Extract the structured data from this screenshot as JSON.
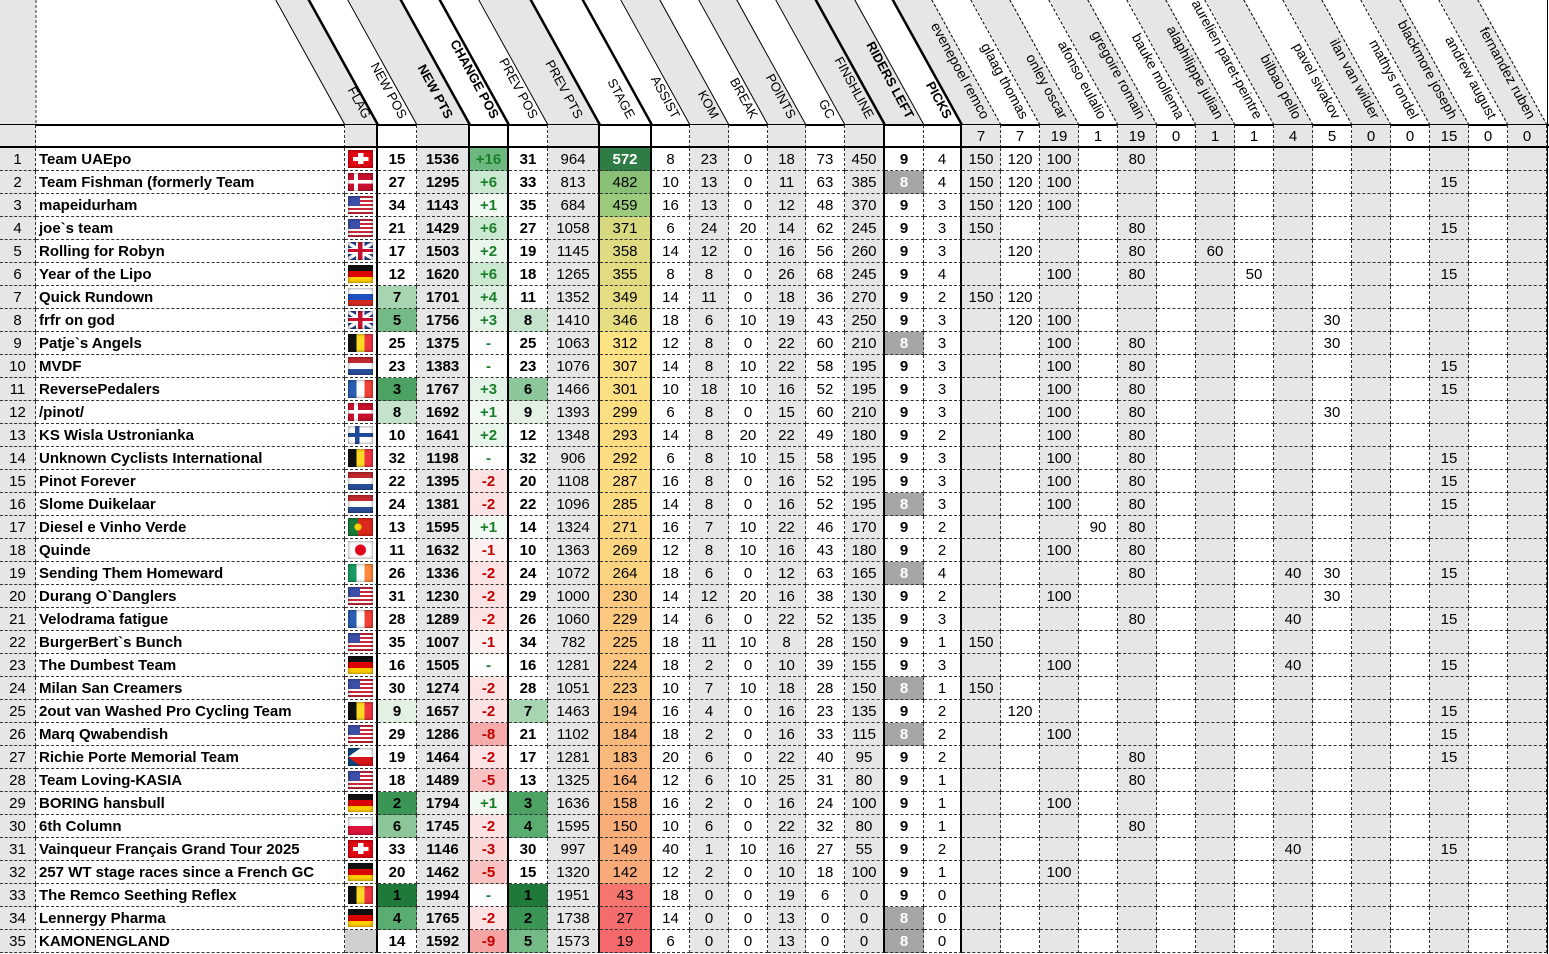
{
  "colors": {
    "stage_scale": [
      "#f4696b",
      "#f9ae7a",
      "#fde384",
      "#96c97d",
      "#2f7d45"
    ],
    "positive_change_text": "#1a7f2a",
    "negative_change_text": "#c00000",
    "riders_left_low_bg": "#a6a6a6",
    "top_rank_green": "#1f7a3a",
    "alt_column_gray": "#e6e6e6"
  },
  "headers": {
    "flag": "FLAG",
    "new_pos": "NEW POS",
    "new_pts": "NEW PTS",
    "change_pos": "CHANGE POS",
    "prev_pos": "PREV POS",
    "prev_pts": "PREV PTS",
    "stage": "STAGE",
    "assist": "ASSIST",
    "kom": "KOM",
    "break": "BREAK",
    "points": "POINTS",
    "gc": "GC",
    "finishline": "FINSHLINE",
    "riders_left": "RIDERS LEFT",
    "picks": "PICKS"
  },
  "riders": [
    {
      "name": "evenepoel remco",
      "count": 7
    },
    {
      "name": "glaag thomas",
      "count": 7
    },
    {
      "name": "onley oscar",
      "count": 19
    },
    {
      "name": "afonso eulalio",
      "count": 1
    },
    {
      "name": "gregoire romain",
      "count": 19
    },
    {
      "name": "bauke mollema",
      "count": 0
    },
    {
      "name": "alaphilippe julian",
      "count": 1
    },
    {
      "name": "aurelien paret-peintre",
      "count": 1
    },
    {
      "name": "bilbao pello",
      "count": 4
    },
    {
      "name": "pavel sivakov",
      "count": 5
    },
    {
      "name": "ilan van wilder",
      "count": 0
    },
    {
      "name": "mathys rondel",
      "count": 0
    },
    {
      "name": "blackmore joseph",
      "count": 15
    },
    {
      "name": "andrew august",
      "count": 0
    },
    {
      "name": "fernandez ruben",
      "count": 0
    }
  ],
  "rows": [
    {
      "rank": 1,
      "team": "Team UAEpo",
      "flag": "switzerland",
      "new_pos": 15,
      "new_pts": 1536,
      "change_pos": "+16",
      "prev_pos": 31,
      "prev_pts": 964,
      "stage": 572,
      "assist": 8,
      "kom": 23,
      "break": 0,
      "points": 18,
      "gc": 73,
      "finishline": 450,
      "riders_left": 9,
      "picks_count": 4,
      "picks": {
        "0": 150,
        "1": 120,
        "2": 100,
        "4": 80
      }
    },
    {
      "rank": 2,
      "team": "Team Fishman (formerly Team",
      "flag": "denmark",
      "new_pos": 27,
      "new_pts": 1295,
      "change_pos": "+6",
      "prev_pos": 33,
      "prev_pts": 813,
      "stage": 482,
      "assist": 10,
      "kom": 13,
      "break": 0,
      "points": 11,
      "gc": 63,
      "finishline": 385,
      "riders_left": 8,
      "picks_count": 4,
      "picks": {
        "0": 150,
        "1": 120,
        "2": 100,
        "12": 15
      }
    },
    {
      "rank": 3,
      "team": "mapeidurham",
      "flag": "usa",
      "new_pos": 34,
      "new_pts": 1143,
      "change_pos": "+1",
      "prev_pos": 35,
      "prev_pts": 684,
      "stage": 459,
      "assist": 16,
      "kom": 13,
      "break": 0,
      "points": 12,
      "gc": 48,
      "finishline": 370,
      "riders_left": 9,
      "picks_count": 3,
      "picks": {
        "0": 150,
        "1": 120,
        "2": 100
      }
    },
    {
      "rank": 4,
      "team": "joe`s team",
      "flag": "usa",
      "new_pos": 21,
      "new_pts": 1429,
      "change_pos": "+6",
      "prev_pos": 27,
      "prev_pts": 1058,
      "stage": 371,
      "assist": 6,
      "kom": 24,
      "break": 20,
      "points": 14,
      "gc": 62,
      "finishline": 245,
      "riders_left": 9,
      "picks_count": 3,
      "picks": {
        "0": 150,
        "4": 80,
        "12": 15
      }
    },
    {
      "rank": 5,
      "team": "Rolling for Robyn",
      "flag": "uk",
      "new_pos": 17,
      "new_pts": 1503,
      "change_pos": "+2",
      "prev_pos": 19,
      "prev_pts": 1145,
      "stage": 358,
      "assist": 14,
      "kom": 12,
      "break": 0,
      "points": 16,
      "gc": 56,
      "finishline": 260,
      "riders_left": 9,
      "picks_count": 3,
      "picks": {
        "1": 120,
        "4": 80,
        "6": 60
      }
    },
    {
      "rank": 6,
      "team": "Year of the Lipo",
      "flag": "germany",
      "new_pos": 12,
      "new_pts": 1620,
      "change_pos": "+6",
      "prev_pos": 18,
      "prev_pts": 1265,
      "stage": 355,
      "assist": 8,
      "kom": 8,
      "break": 0,
      "points": 26,
      "gc": 68,
      "finishline": 245,
      "riders_left": 9,
      "picks_count": 4,
      "picks": {
        "2": 100,
        "4": 80,
        "7": 50,
        "12": 15
      }
    },
    {
      "rank": 7,
      "team": "Quick Rundown",
      "flag": "russia",
      "new_pos": 7,
      "new_pts": 1701,
      "change_pos": "+4",
      "prev_pos": 11,
      "prev_pts": 1352,
      "stage": 349,
      "assist": 14,
      "kom": 11,
      "break": 0,
      "points": 18,
      "gc": 36,
      "finishline": 270,
      "riders_left": 9,
      "picks_count": 2,
      "picks": {
        "0": 150,
        "1": 120
      }
    },
    {
      "rank": 8,
      "team": "frfr on god",
      "flag": "uk",
      "new_pos": 5,
      "new_pts": 1756,
      "change_pos": "+3",
      "prev_pos": 8,
      "prev_pts": 1410,
      "stage": 346,
      "assist": 18,
      "kom": 6,
      "break": 10,
      "points": 19,
      "gc": 43,
      "finishline": 250,
      "riders_left": 9,
      "picks_count": 3,
      "picks": {
        "1": 120,
        "2": 100,
        "9": 30
      }
    },
    {
      "rank": 9,
      "team": "Patje`s Angels",
      "flag": "belgium",
      "new_pos": 25,
      "new_pts": 1375,
      "change_pos": "-",
      "prev_pos": 25,
      "prev_pts": 1063,
      "stage": 312,
      "assist": 12,
      "kom": 8,
      "break": 0,
      "points": 22,
      "gc": 60,
      "finishline": 210,
      "riders_left": 8,
      "picks_count": 3,
      "picks": {
        "2": 100,
        "4": 80,
        "9": 30
      }
    },
    {
      "rank": 10,
      "team": "MVDF",
      "flag": "netherlands",
      "new_pos": 23,
      "new_pts": 1383,
      "change_pos": "-",
      "prev_pos": 23,
      "prev_pts": 1076,
      "stage": 307,
      "assist": 14,
      "kom": 8,
      "break": 10,
      "points": 22,
      "gc": 58,
      "finishline": 195,
      "riders_left": 9,
      "picks_count": 3,
      "picks": {
        "2": 100,
        "4": 80,
        "12": 15
      }
    },
    {
      "rank": 11,
      "team": "ReversePedalers",
      "flag": "france",
      "new_pos": 3,
      "new_pts": 1767,
      "change_pos": "+3",
      "prev_pos": 6,
      "prev_pts": 1466,
      "stage": 301,
      "assist": 10,
      "kom": 18,
      "break": 10,
      "points": 16,
      "gc": 52,
      "finishline": 195,
      "riders_left": 9,
      "picks_count": 3,
      "picks": {
        "2": 100,
        "4": 80,
        "12": 15
      }
    },
    {
      "rank": 12,
      "team": "/pinot/",
      "flag": "denmark",
      "new_pos": 8,
      "new_pts": 1692,
      "change_pos": "+1",
      "prev_pos": 9,
      "prev_pts": 1393,
      "stage": 299,
      "assist": 6,
      "kom": 8,
      "break": 0,
      "points": 15,
      "gc": 60,
      "finishline": 210,
      "riders_left": 9,
      "picks_count": 3,
      "picks": {
        "2": 100,
        "4": 80,
        "9": 30
      }
    },
    {
      "rank": 13,
      "team": "KS Wisla Ustronianka",
      "flag": "finland",
      "new_pos": 10,
      "new_pts": 1641,
      "change_pos": "+2",
      "prev_pos": 12,
      "prev_pts": 1348,
      "stage": 293,
      "assist": 14,
      "kom": 8,
      "break": 20,
      "points": 22,
      "gc": 49,
      "finishline": 180,
      "riders_left": 9,
      "picks_count": 2,
      "picks": {
        "2": 100,
        "4": 80
      }
    },
    {
      "rank": 14,
      "team": "Unknown Cyclists International",
      "flag": "belgium",
      "new_pos": 32,
      "new_pts": 1198,
      "change_pos": "-",
      "prev_pos": 32,
      "prev_pts": 906,
      "stage": 292,
      "assist": 6,
      "kom": 8,
      "break": 10,
      "points": 15,
      "gc": 58,
      "finishline": 195,
      "riders_left": 9,
      "picks_count": 3,
      "picks": {
        "2": 100,
        "4": 80,
        "12": 15
      }
    },
    {
      "rank": 15,
      "team": "Pinot Forever",
      "flag": "netherlands",
      "new_pos": 22,
      "new_pts": 1395,
      "change_pos": "-2",
      "prev_pos": 20,
      "prev_pts": 1108,
      "stage": 287,
      "assist": 16,
      "kom": 8,
      "break": 0,
      "points": 16,
      "gc": 52,
      "finishline": 195,
      "riders_left": 9,
      "picks_count": 3,
      "picks": {
        "2": 100,
        "4": 80,
        "12": 15
      }
    },
    {
      "rank": 16,
      "team": "Slome Duikelaar",
      "flag": "netherlands",
      "new_pos": 24,
      "new_pts": 1381,
      "change_pos": "-2",
      "prev_pos": 22,
      "prev_pts": 1096,
      "stage": 285,
      "assist": 14,
      "kom": 8,
      "break": 0,
      "points": 16,
      "gc": 52,
      "finishline": 195,
      "riders_left": 8,
      "picks_count": 3,
      "picks": {
        "2": 100,
        "4": 80,
        "12": 15
      }
    },
    {
      "rank": 17,
      "team": "Diesel e Vinho Verde",
      "flag": "portugal",
      "new_pos": 13,
      "new_pts": 1595,
      "change_pos": "+1",
      "prev_pos": 14,
      "prev_pts": 1324,
      "stage": 271,
      "assist": 16,
      "kom": 7,
      "break": 10,
      "points": 22,
      "gc": 46,
      "finishline": 170,
      "riders_left": 9,
      "picks_count": 2,
      "picks": {
        "3": 90,
        "4": 80
      }
    },
    {
      "rank": 18,
      "team": "Quinde",
      "flag": "japan",
      "new_pos": 11,
      "new_pts": 1632,
      "change_pos": "-1",
      "prev_pos": 10,
      "prev_pts": 1363,
      "stage": 269,
      "assist": 12,
      "kom": 8,
      "break": 10,
      "points": 16,
      "gc": 43,
      "finishline": 180,
      "riders_left": 9,
      "picks_count": 2,
      "picks": {
        "2": 100,
        "4": 80
      }
    },
    {
      "rank": 19,
      "team": "Sending Them Homeward",
      "flag": "ireland",
      "new_pos": 26,
      "new_pts": 1336,
      "change_pos": "-2",
      "prev_pos": 24,
      "prev_pts": 1072,
      "stage": 264,
      "assist": 18,
      "kom": 6,
      "break": 0,
      "points": 12,
      "gc": 63,
      "finishline": 165,
      "riders_left": 8,
      "picks_count": 4,
      "picks": {
        "4": 80,
        "8": 40,
        "9": 30,
        "12": 15
      }
    },
    {
      "rank": 20,
      "team": "Durang O`Danglers",
      "flag": "usa",
      "new_pos": 31,
      "new_pts": 1230,
      "change_pos": "-2",
      "prev_pos": 29,
      "prev_pts": 1000,
      "stage": 230,
      "assist": 14,
      "kom": 12,
      "break": 20,
      "points": 16,
      "gc": 38,
      "finishline": 130,
      "riders_left": 9,
      "picks_count": 2,
      "picks": {
        "2": 100,
        "9": 30
      }
    },
    {
      "rank": 21,
      "team": "Velodrama fatigue",
      "flag": "france",
      "new_pos": 28,
      "new_pts": 1289,
      "change_pos": "-2",
      "prev_pos": 26,
      "prev_pts": 1060,
      "stage": 229,
      "assist": 14,
      "kom": 6,
      "break": 0,
      "points": 22,
      "gc": 52,
      "finishline": 135,
      "riders_left": 9,
      "picks_count": 3,
      "picks": {
        "4": 80,
        "8": 40,
        "12": 15
      }
    },
    {
      "rank": 22,
      "team": "BurgerBert`s Bunch",
      "flag": "usa",
      "new_pos": 35,
      "new_pts": 1007,
      "change_pos": "-1",
      "prev_pos": 34,
      "prev_pts": 782,
      "stage": 225,
      "assist": 18,
      "kom": 11,
      "break": 10,
      "points": 8,
      "gc": 28,
      "finishline": 150,
      "riders_left": 9,
      "picks_count": 1,
      "picks": {
        "0": 150
      }
    },
    {
      "rank": 23,
      "team": "The Dumbest Team",
      "flag": "germany",
      "new_pos": 16,
      "new_pts": 1505,
      "change_pos": "-",
      "prev_pos": 16,
      "prev_pts": 1281,
      "stage": 224,
      "assist": 18,
      "kom": 2,
      "break": 0,
      "points": 10,
      "gc": 39,
      "finishline": 155,
      "riders_left": 9,
      "picks_count": 3,
      "picks": {
        "2": 100,
        "8": 40,
        "12": 15
      }
    },
    {
      "rank": 24,
      "team": "Milan San Creamers",
      "flag": "usa",
      "new_pos": 30,
      "new_pts": 1274,
      "change_pos": "-2",
      "prev_pos": 28,
      "prev_pts": 1051,
      "stage": 223,
      "assist": 10,
      "kom": 7,
      "break": 10,
      "points": 18,
      "gc": 28,
      "finishline": 150,
      "riders_left": 8,
      "picks_count": 1,
      "picks": {
        "0": 150
      }
    },
    {
      "rank": 25,
      "team": "2out van Washed Pro Cycling Team",
      "flag": "belgium",
      "new_pos": 9,
      "new_pts": 1657,
      "change_pos": "-2",
      "prev_pos": 7,
      "prev_pts": 1463,
      "stage": 194,
      "assist": 16,
      "kom": 4,
      "break": 0,
      "points": 16,
      "gc": 23,
      "finishline": 135,
      "riders_left": 9,
      "picks_count": 2,
      "picks": {
        "1": 120,
        "12": 15
      }
    },
    {
      "rank": 26,
      "team": "Marq Qwabendish",
      "flag": "usa",
      "new_pos": 29,
      "new_pts": 1286,
      "change_pos": "-8",
      "prev_pos": 21,
      "prev_pts": 1102,
      "stage": 184,
      "assist": 18,
      "kom": 2,
      "break": 0,
      "points": 16,
      "gc": 33,
      "finishline": 115,
      "riders_left": 8,
      "picks_count": 2,
      "picks": {
        "2": 100,
        "12": 15
      }
    },
    {
      "rank": 27,
      "team": "Richie Porte Memorial Team",
      "flag": "czechia",
      "new_pos": 19,
      "new_pts": 1464,
      "change_pos": "-2",
      "prev_pos": 17,
      "prev_pts": 1281,
      "stage": 183,
      "assist": 20,
      "kom": 6,
      "break": 0,
      "points": 22,
      "gc": 40,
      "finishline": 95,
      "riders_left": 9,
      "picks_count": 2,
      "picks": {
        "4": 80,
        "12": 15
      }
    },
    {
      "rank": 28,
      "team": "Team Loving-KASIA",
      "flag": "usa",
      "new_pos": 18,
      "new_pts": 1489,
      "change_pos": "-5",
      "prev_pos": 13,
      "prev_pts": 1325,
      "stage": 164,
      "assist": 12,
      "kom": 6,
      "break": 10,
      "points": 25,
      "gc": 31,
      "finishline": 80,
      "riders_left": 9,
      "picks_count": 1,
      "picks": {
        "4": 80
      }
    },
    {
      "rank": 29,
      "team": "BORING hansbull",
      "flag": "germany",
      "new_pos": 2,
      "new_pts": 1794,
      "change_pos": "+1",
      "prev_pos": 3,
      "prev_pts": 1636,
      "stage": 158,
      "assist": 16,
      "kom": 2,
      "break": 0,
      "points": 16,
      "gc": 24,
      "finishline": 100,
      "riders_left": 9,
      "picks_count": 1,
      "picks": {
        "2": 100
      }
    },
    {
      "rank": 30,
      "team": "6th Column",
      "flag": "poland",
      "new_pos": 6,
      "new_pts": 1745,
      "change_pos": "-2",
      "prev_pos": 4,
      "prev_pts": 1595,
      "stage": 150,
      "assist": 10,
      "kom": 6,
      "break": 0,
      "points": 22,
      "gc": 32,
      "finishline": 80,
      "riders_left": 9,
      "picks_count": 1,
      "picks": {
        "4": 80
      }
    },
    {
      "rank": 31,
      "team": "Vainqueur Français Grand Tour 2025",
      "flag": "switzerland",
      "new_pos": 33,
      "new_pts": 1146,
      "change_pos": "-3",
      "prev_pos": 30,
      "prev_pts": 997,
      "stage": 149,
      "assist": 40,
      "kom": 1,
      "break": 10,
      "points": 16,
      "gc": 27,
      "finishline": 55,
      "riders_left": 9,
      "picks_count": 2,
      "picks": {
        "8": 40,
        "12": 15
      }
    },
    {
      "rank": 32,
      "team": "257 WT stage races since a French GC",
      "flag": "germany",
      "new_pos": 20,
      "new_pts": 1462,
      "change_pos": "-5",
      "prev_pos": 15,
      "prev_pts": 1320,
      "stage": 142,
      "assist": 12,
      "kom": 2,
      "break": 0,
      "points": 10,
      "gc": 18,
      "finishline": 100,
      "riders_left": 9,
      "picks_count": 1,
      "picks": {
        "2": 100
      }
    },
    {
      "rank": 33,
      "team": "The Remco Seething Reflex",
      "flag": "belgium",
      "new_pos": 1,
      "new_pts": 1994,
      "change_pos": "-",
      "prev_pos": 1,
      "prev_pts": 1951,
      "stage": 43,
      "assist": 18,
      "kom": 0,
      "break": 0,
      "points": 19,
      "gc": 6,
      "finishline": 0,
      "riders_left": 9,
      "picks_count": 0,
      "picks": {}
    },
    {
      "rank": 34,
      "team": "Lennergy Pharma",
      "flag": "germany",
      "new_pos": 4,
      "new_pts": 1765,
      "change_pos": "-2",
      "prev_pos": 2,
      "prev_pts": 1738,
      "stage": 27,
      "assist": 14,
      "kom": 0,
      "break": 0,
      "points": 13,
      "gc": 0,
      "finishline": 0,
      "riders_left": 8,
      "picks_count": 0,
      "picks": {}
    },
    {
      "rank": 35,
      "team": "KAMONENGLAND",
      "flag": "",
      "new_pos": 14,
      "new_pts": 1592,
      "change_pos": "-9",
      "prev_pos": 5,
      "prev_pts": 1573,
      "stage": 19,
      "assist": 6,
      "kom": 0,
      "break": 0,
      "points": 13,
      "gc": 0,
      "finishline": 0,
      "riders_left": 8,
      "picks_count": 0,
      "picks": {}
    }
  ]
}
